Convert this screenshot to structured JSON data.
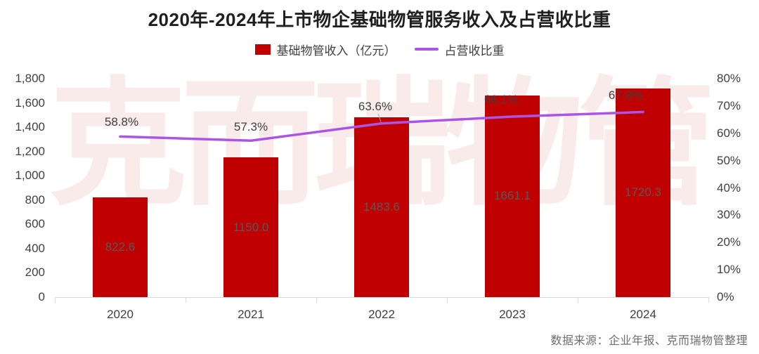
{
  "chart_data": {
    "type": "bar",
    "title": "2020年-2024年上市物企基础物管服务收入及占营收比重",
    "categories": [
      "2020",
      "2021",
      "2022",
      "2023",
      "2024"
    ],
    "series": [
      {
        "name": "基础物管收入（亿元）",
        "type": "bar",
        "axis": "left",
        "values": [
          822.6,
          1150.0,
          1483.6,
          1661.1,
          1720.3
        ],
        "labels": [
          "822.6",
          "1150.0",
          "1483.6",
          "1661.1",
          "1720.3"
        ],
        "color": "#c00000"
      },
      {
        "name": "占营收比重",
        "type": "line",
        "axis": "right",
        "values": [
          58.8,
          57.3,
          63.6,
          66.1,
          67.8
        ],
        "labels": [
          "58.8%",
          "57.3%",
          "63.6%",
          "66.1%",
          "67.8%"
        ],
        "color": "#ab54e6"
      }
    ],
    "left_axis": {
      "min": 0,
      "max": 1800,
      "step": 200,
      "ticks": [
        "0",
        "200",
        "400",
        "600",
        "800",
        "1,000",
        "1,200",
        "1,400",
        "1,600",
        "1,800"
      ]
    },
    "right_axis": {
      "min": 0,
      "max": 80,
      "step": 10,
      "ticks": [
        "0%",
        "10%",
        "20%",
        "30%",
        "40%",
        "50%",
        "60%",
        "70%",
        "80%"
      ]
    },
    "grid": false,
    "legend_position": "top",
    "watermark": "克而瑞物管",
    "source": "数据来源：企业年报、克而瑞物管整理"
  },
  "colors": {
    "bar": "#c00000",
    "line": "#ab54e6",
    "axis_line": "#d9d9d9",
    "tick_text": "#404040",
    "bar_label": "#595959",
    "leader_line": "#a6a6a6"
  }
}
